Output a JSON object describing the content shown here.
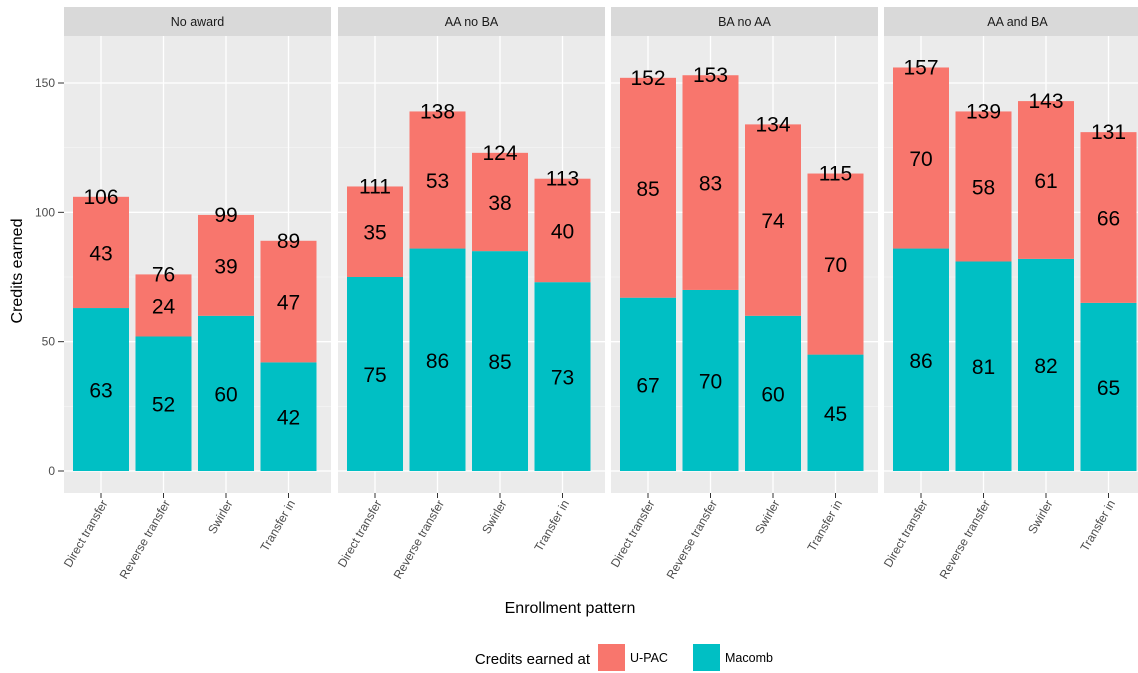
{
  "chart_data": {
    "type": "bar",
    "stacked": true,
    "facet_by": "award",
    "facets": [
      "No award",
      "AA no BA",
      "BA no AA",
      "AA and BA"
    ],
    "categories": [
      "Direct transfer",
      "Reverse transfer",
      "Swirler",
      "Transfer in"
    ],
    "series": [
      {
        "name": "Macomb",
        "color": "#00BFC4",
        "values": [
          [
            63,
            52,
            60,
            42
          ],
          [
            75,
            86,
            85,
            73
          ],
          [
            67,
            70,
            60,
            45
          ],
          [
            86,
            81,
            82,
            65
          ]
        ]
      },
      {
        "name": "U-PAC",
        "color": "#F8766D",
        "values": [
          [
            43,
            24,
            39,
            47
          ],
          [
            35,
            53,
            38,
            40
          ],
          [
            85,
            83,
            74,
            70
          ],
          [
            70,
            58,
            61,
            66
          ]
        ]
      }
    ],
    "totals": [
      [
        106,
        76,
        99,
        89
      ],
      [
        111,
        138,
        124,
        113
      ],
      [
        152,
        153,
        134,
        115
      ],
      [
        157,
        139,
        143,
        131
      ]
    ],
    "xlabel": "Enrollment pattern",
    "ylabel": "Credits earned",
    "ylim": [
      0,
      170
    ],
    "yticks": [
      0,
      50,
      100,
      150
    ],
    "grid": true,
    "panel_background": "#EBEBEB",
    "strip_background": "#D9D9D9",
    "legend": {
      "title": "Credits earned at",
      "position": "bottom",
      "items": [
        {
          "label": "U-PAC",
          "color": "#F8766D"
        },
        {
          "label": "Macomb",
          "color": "#00BFC4"
        }
      ]
    }
  }
}
